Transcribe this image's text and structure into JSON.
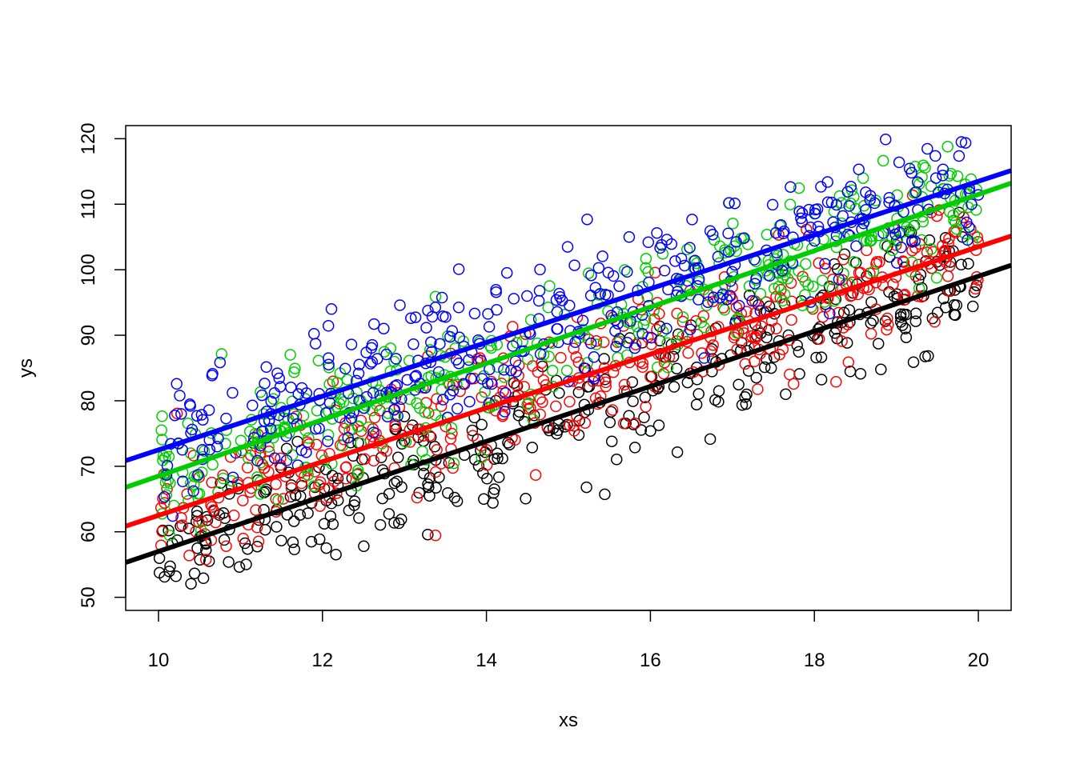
{
  "chart_data": {
    "type": "scatter",
    "title": "",
    "xlabel": "xs",
    "ylabel": "ys",
    "xlim": [
      9.6,
      20.4
    ],
    "ylim": [
      48,
      122
    ],
    "x_ticks": [
      "10",
      "12",
      "14",
      "16",
      "18",
      "20"
    ],
    "y_ticks": [
      "50",
      "60",
      "70",
      "80",
      "90",
      "100",
      "110",
      "120"
    ],
    "grid": false,
    "legend": "none",
    "marker": "open-circle",
    "series": [
      {
        "color": "#000000",
        "fit_line": {
          "intercept": 15.0,
          "slope": 4.2
        },
        "noise_sd": 5.0,
        "n_points": 400,
        "x_range": [
          10,
          20
        ]
      },
      {
        "color": "#ff0000",
        "fit_line": {
          "intercept": 21.5,
          "slope": 4.1
        },
        "noise_sd": 4.5,
        "n_points": 400,
        "x_range": [
          10,
          20
        ]
      },
      {
        "color": "#00cd00",
        "fit_line": {
          "intercept": 25.5,
          "slope": 4.3
        },
        "noise_sd": 4.5,
        "n_points": 400,
        "x_range": [
          10,
          20
        ]
      },
      {
        "color": "#0000ff",
        "fit_line": {
          "intercept": 31.5,
          "slope": 4.1
        },
        "noise_sd": 5.0,
        "n_points": 400,
        "x_range": [
          10,
          20
        ]
      }
    ]
  }
}
